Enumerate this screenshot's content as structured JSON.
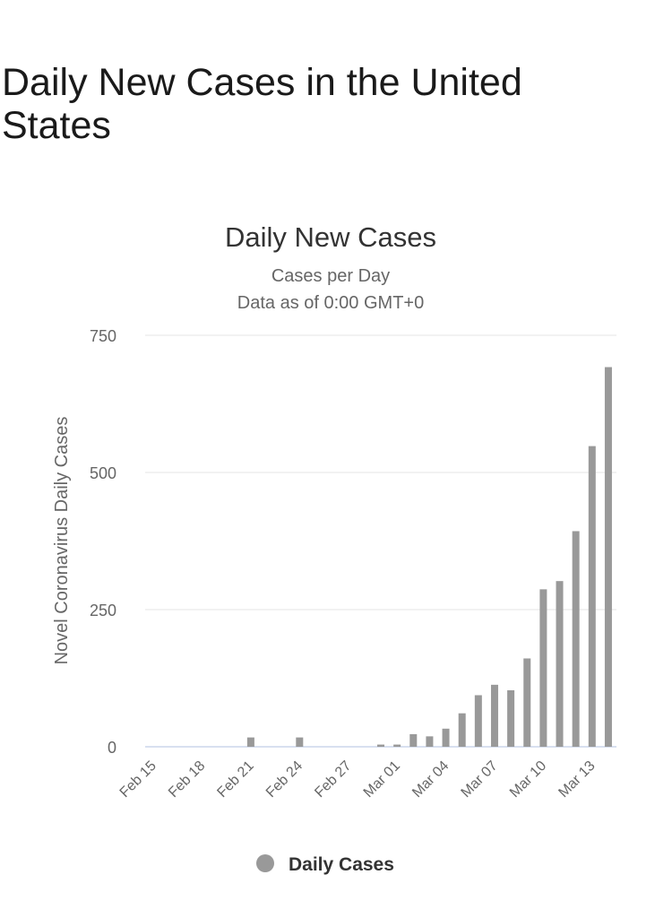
{
  "page": {
    "heading": "Daily New Cases in the United States"
  },
  "chart_data": {
    "type": "bar",
    "title": "Daily New Cases",
    "subtitle": [
      "Cases per Day",
      "Data as of 0:00 GMT+0"
    ],
    "ylabel": "Novel Coronavirus Daily Cases",
    "xlabel": "",
    "ylim": [
      0,
      750
    ],
    "yticks": [
      0,
      250,
      500,
      750
    ],
    "grid": true,
    "legend": {
      "position": "bottom",
      "entries": [
        "Daily Cases"
      ]
    },
    "tick_labels": [
      "Feb 15",
      "Feb 18",
      "Feb 21",
      "Feb 24",
      "Feb 27",
      "Mar 01",
      "Mar 04",
      "Mar 07",
      "Mar 10",
      "Mar 13"
    ],
    "categories": [
      "Feb 15",
      "Feb 16",
      "Feb 17",
      "Feb 18",
      "Feb 19",
      "Feb 20",
      "Feb 21",
      "Feb 22",
      "Feb 23",
      "Feb 24",
      "Feb 25",
      "Feb 26",
      "Feb 27",
      "Feb 28",
      "Feb 29",
      "Mar 01",
      "Mar 02",
      "Mar 03",
      "Mar 04",
      "Mar 05",
      "Mar 06",
      "Mar 07",
      "Mar 08",
      "Mar 09",
      "Mar 10",
      "Mar 11",
      "Mar 12",
      "Mar 13",
      "Mar 14"
    ],
    "series": [
      {
        "name": "Daily Cases",
        "values": [
          0,
          0,
          0,
          0,
          0,
          0,
          17,
          0,
          0,
          17,
          0,
          0,
          0,
          0,
          4,
          4,
          23,
          19,
          33,
          61,
          94,
          113,
          103,
          161,
          287,
          302,
          393,
          548,
          692
        ]
      }
    ],
    "colors": {
      "bar": "#999999",
      "grid": "#e6e6e6",
      "baseline": "#ccd6eb"
    }
  }
}
